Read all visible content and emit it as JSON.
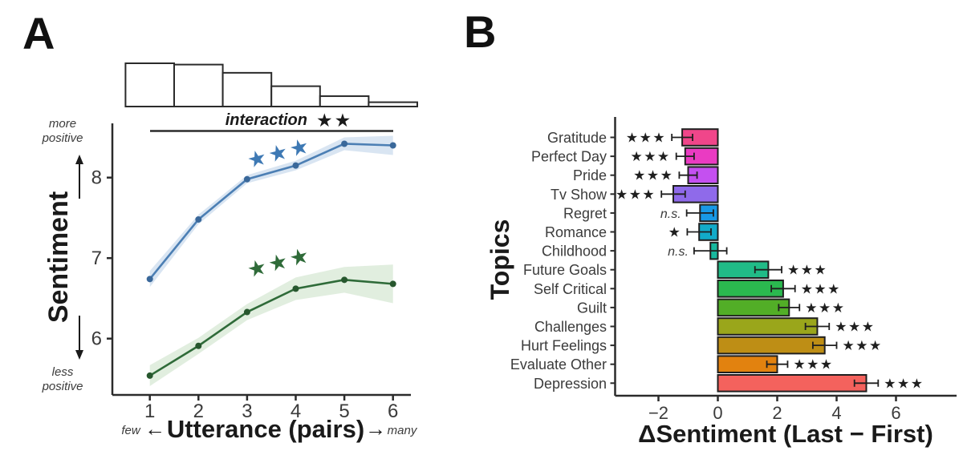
{
  "panel_a": {
    "label": "A",
    "annotation": {
      "text": "interaction",
      "stars": "★★"
    },
    "y_axis": {
      "title": "Sentiment",
      "ticks": [
        6,
        7,
        8
      ],
      "more_note": [
        "more",
        "positive"
      ],
      "less_note": [
        "less",
        "positive"
      ]
    },
    "x_axis": {
      "title": "Utterance (pairs)",
      "few_note": "few",
      "many_note": "many",
      "left_arrow": "←",
      "right_arrow": "→",
      "ticks": [
        1,
        2,
        3,
        4,
        5,
        6
      ]
    }
  },
  "panel_b": {
    "label": "B",
    "y_axis_title": "Topics",
    "x_axis_title": "ΔSentiment (Last − First)",
    "x_ticks": [
      -2,
      0,
      2,
      4,
      6
    ]
  },
  "chart_data": [
    {
      "panel": "A",
      "type": "line",
      "x": [
        1,
        2,
        3,
        4,
        5,
        6
      ],
      "xlabel": "Utterance (pairs)",
      "ylabel": "Sentiment",
      "ylim": [
        5.3,
        8.75
      ],
      "yticks": [
        6,
        7,
        8
      ],
      "annotation": "interaction ★★",
      "series": [
        {
          "name": "blue",
          "values": [
            6.74,
            7.48,
            7.98,
            8.15,
            8.42,
            8.4
          ],
          "ci": [
            0.1,
            0.06,
            0.05,
            0.06,
            0.08,
            0.12
          ],
          "line_color": "#4C7FB4",
          "point_color": "#3A689A",
          "ribbon_color": "#B9D0E7",
          "stars": "★★★",
          "stars_color": "#3E79B4",
          "stars_at": [
            3.7,
            8.22
          ]
        },
        {
          "name": "green",
          "values": [
            5.54,
            5.91,
            6.33,
            6.62,
            6.73,
            6.68
          ],
          "ci": [
            0.13,
            0.1,
            0.1,
            0.14,
            0.16,
            0.24
          ],
          "line_color": "#2F6B39",
          "point_color": "#27572E",
          "ribbon_color": "#C8E0C4",
          "stars": "★★★",
          "stars_color": "#2F6B39",
          "stars_at": [
            3.7,
            6.86
          ]
        }
      ]
    },
    {
      "panel": "A",
      "type": "histogram",
      "bin_centers": [
        1,
        2,
        3,
        4,
        5,
        6
      ],
      "rel_heights": [
        1.0,
        0.97,
        0.78,
        0.47,
        0.24,
        0.1
      ],
      "bar_fill": "#ffffff",
      "bar_stroke": "#2b2b2b"
    },
    {
      "panel": "B",
      "type": "bar",
      "orientation": "horizontal",
      "title": "",
      "xlabel": "ΔSentiment (Last − First)",
      "ylabel": "Topics",
      "xlim": [
        -3.4,
        8
      ],
      "xticks": [
        -2,
        0,
        2,
        4,
        6
      ],
      "categories": [
        "Gratitude",
        "Perfect Day",
        "Pride",
        "Tv Show",
        "Regret",
        "Romance",
        "Childhood",
        "Future Goals",
        "Self Critical",
        "Guilt",
        "Challenges",
        "Hurt Feelings",
        "Evaluate Other",
        "Depression"
      ],
      "values": [
        -1.2,
        -1.1,
        -1.0,
        -1.5,
        -0.6,
        -0.63,
        -0.25,
        1.7,
        2.2,
        2.4,
        3.35,
        3.6,
        2.0,
        5.0
      ],
      "errors": [
        0.35,
        0.3,
        0.3,
        0.4,
        0.45,
        0.4,
        0.55,
        0.45,
        0.4,
        0.35,
        0.4,
        0.4,
        0.35,
        0.4
      ],
      "significance": [
        "★★★",
        "★★★",
        "★★★",
        "★★★",
        "n.s.",
        "★",
        "n.s.",
        "★★★",
        "★★★",
        "★★★",
        "★★★",
        "★★★",
        "★★★",
        "★★★"
      ],
      "colors": [
        "#F0468A",
        "#EA3BC2",
        "#C450F0",
        "#8F6AEA",
        "#1899E6",
        "#12ABC9",
        "#17B89E",
        "#21BB87",
        "#2BB94F",
        "#52AE27",
        "#9AA61B",
        "#BE8E15",
        "#E2820F",
        "#F4625D"
      ]
    }
  ]
}
